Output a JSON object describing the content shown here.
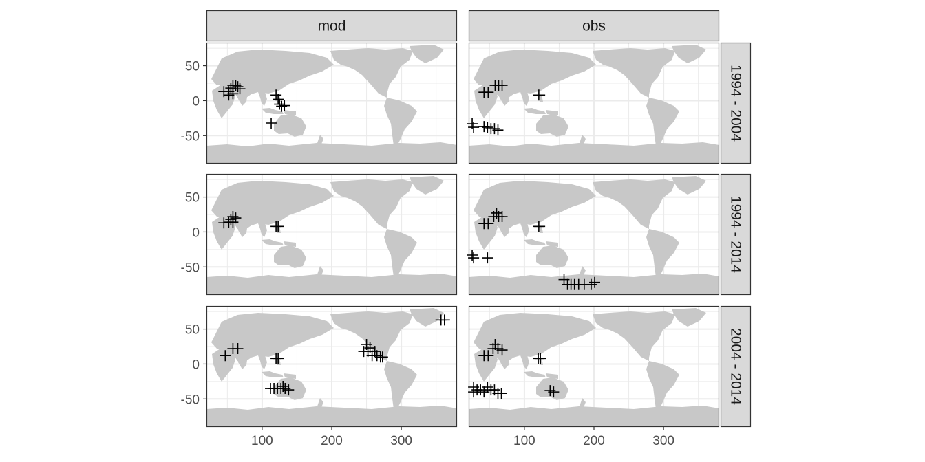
{
  "chart_data": {
    "type": "scatter",
    "title": "",
    "xlabel": "",
    "ylabel": "",
    "xlim": [
      20,
      380
    ],
    "ylim": [
      -90,
      83
    ],
    "x_ticks": [
      100,
      200,
      300
    ],
    "y_ticks": [
      50,
      0,
      -50
    ],
    "x_tick_labels": [
      "100",
      "200",
      "300"
    ],
    "y_tick_labels": [
      "50",
      "0",
      "-50"
    ],
    "columns": [
      "mod",
      "obs"
    ],
    "rows": [
      "1994 - 2004",
      "1994 - 2014",
      "2004 - 2014"
    ],
    "marker": "plus",
    "colors": {
      "land": "#c8c8c8",
      "ocean": "#ffffff",
      "grid": "#ebebeb",
      "strip_fill": "#d9d9d9",
      "border": "#333333",
      "marker": "#000000",
      "tick_text": "#4d4d4d"
    },
    "panels": [
      {
        "row": "1994 - 2004",
        "column": "mod",
        "points": [
          [
            45,
            13
          ],
          [
            52,
            13
          ],
          [
            55,
            18
          ],
          [
            58,
            22
          ],
          [
            62,
            22
          ],
          [
            65,
            20
          ],
          [
            68,
            17
          ],
          [
            52,
            8
          ],
          [
            58,
            10
          ],
          [
            120,
            8
          ],
          [
            123,
            2
          ],
          [
            125,
            -5
          ],
          [
            128,
            -8
          ],
          [
            132,
            -7
          ],
          [
            113,
            -32
          ]
        ]
      },
      {
        "row": "1994 - 2004",
        "column": "obs",
        "points": [
          [
            42,
            12
          ],
          [
            48,
            12
          ],
          [
            58,
            22
          ],
          [
            63,
            22
          ],
          [
            68,
            22
          ],
          [
            120,
            8
          ],
          [
            122,
            8
          ],
          [
            25,
            -33
          ],
          [
            27,
            -38
          ],
          [
            42,
            -37
          ],
          [
            47,
            -38
          ],
          [
            52,
            -40
          ],
          [
            57,
            -40
          ],
          [
            62,
            -42
          ]
        ]
      },
      {
        "row": "1994 - 2014",
        "column": "mod",
        "points": [
          [
            45,
            13
          ],
          [
            52,
            14
          ],
          [
            55,
            18
          ],
          [
            58,
            22
          ],
          [
            62,
            20
          ],
          [
            58,
            14
          ],
          [
            120,
            8
          ],
          [
            123,
            8
          ]
        ]
      },
      {
        "row": "1994 - 2014",
        "column": "obs",
        "points": [
          [
            42,
            12
          ],
          [
            48,
            12
          ],
          [
            56,
            22
          ],
          [
            60,
            27
          ],
          [
            63,
            22
          ],
          [
            68,
            22
          ],
          [
            120,
            8
          ],
          [
            122,
            8
          ],
          [
            25,
            -33
          ],
          [
            27,
            -37
          ],
          [
            47,
            -37
          ],
          [
            157,
            -68
          ],
          [
            162,
            -75
          ],
          [
            167,
            -75
          ],
          [
            172,
            -75
          ],
          [
            178,
            -75
          ],
          [
            186,
            -75
          ],
          [
            196,
            -75
          ],
          [
            201,
            -72
          ]
        ]
      },
      {
        "row": "2004 - 2014",
        "column": "mod",
        "points": [
          [
            47,
            12
          ],
          [
            58,
            22
          ],
          [
            65,
            22
          ],
          [
            120,
            8
          ],
          [
            123,
            8
          ],
          [
            246,
            18
          ],
          [
            250,
            28
          ],
          [
            252,
            18
          ],
          [
            255,
            23
          ],
          [
            258,
            12
          ],
          [
            262,
            18
          ],
          [
            265,
            12
          ],
          [
            270,
            10
          ],
          [
            273,
            10
          ],
          [
            357,
            63
          ],
          [
            362,
            63
          ],
          [
            112,
            -35
          ],
          [
            117,
            -35
          ],
          [
            122,
            -35
          ],
          [
            127,
            -35
          ],
          [
            130,
            -32
          ],
          [
            133,
            -35
          ],
          [
            138,
            -37
          ]
        ]
      },
      {
        "row": "2004 - 2014",
        "column": "obs",
        "points": [
          [
            42,
            12
          ],
          [
            48,
            12
          ],
          [
            55,
            22
          ],
          [
            58,
            28
          ],
          [
            62,
            22
          ],
          [
            68,
            20
          ],
          [
            120,
            8
          ],
          [
            123,
            8
          ],
          [
            27,
            -33
          ],
          [
            27,
            -40
          ],
          [
            32,
            -37
          ],
          [
            37,
            -37
          ],
          [
            42,
            -40
          ],
          [
            47,
            -33
          ],
          [
            52,
            -37
          ],
          [
            57,
            -37
          ],
          [
            62,
            -42
          ],
          [
            67,
            -42
          ],
          [
            137,
            -38
          ],
          [
            142,
            -40
          ]
        ]
      }
    ]
  }
}
